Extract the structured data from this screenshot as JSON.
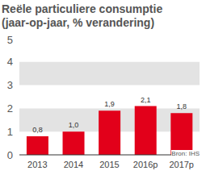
{
  "chart_data": {
    "type": "bar",
    "title": "Reële particuliere consumptie",
    "subtitle": "(jaar-op-jaar, % verandering)",
    "categories": [
      "2013",
      "2014",
      "2015",
      "2016p",
      "2017p"
    ],
    "values": [
      0.8,
      1.0,
      1.9,
      2.1,
      1.8
    ],
    "value_labels": [
      "0,8",
      "1,0",
      "1,9",
      "2,1",
      "1,8"
    ],
    "color": "#e2001a",
    "ylim": [
      0,
      5
    ],
    "yticks": [
      0,
      1,
      2,
      3,
      4,
      5
    ],
    "grid": true,
    "data_labels": true,
    "annotations": [
      "Bron: IHS"
    ]
  }
}
